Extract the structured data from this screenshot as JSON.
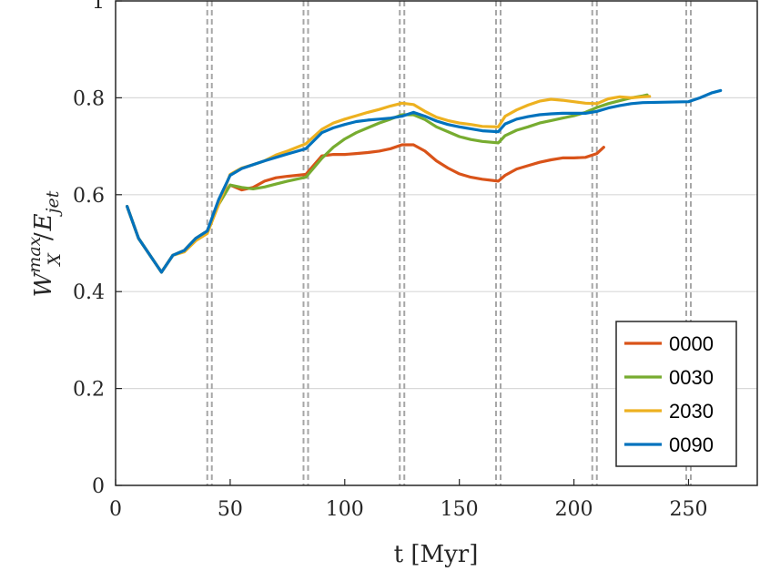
{
  "chart_data": {
    "type": "line",
    "title": "",
    "xlabel": "t [Myr]",
    "ylabel": "W_X^max / E_jet",
    "xlim": [
      0,
      280
    ],
    "ylim": [
      0,
      1
    ],
    "xticks": [
      "0",
      "50",
      "100",
      "150",
      "200",
      "250"
    ],
    "yticks": [
      "0",
      "0.2",
      "0.4",
      "0.6",
      "0.8",
      "1"
    ],
    "grid": "horizontal",
    "legend_position": "bottom-right",
    "vertical_markers": [
      41,
      83,
      125,
      167,
      209,
      250
    ],
    "colors": {
      "0000": "#D95319",
      "0030": "#77AC30",
      "2030": "#EDB120",
      "0090": "#0072BD",
      "marker": "#a6a6a6",
      "grid": "#d9d9d9"
    },
    "series": [
      {
        "name": "0000",
        "x": [
          5,
          10,
          20,
          25,
          30,
          35,
          40,
          45,
          50,
          55,
          60,
          65,
          70,
          75,
          83,
          90,
          95,
          100,
          105,
          110,
          115,
          120,
          125,
          130,
          135,
          140,
          145,
          150,
          155,
          160,
          167,
          170,
          175,
          180,
          185,
          190,
          195,
          200,
          205,
          210,
          213
        ],
        "y": [
          0.576,
          0.51,
          0.44,
          0.475,
          0.485,
          0.51,
          0.525,
          0.585,
          0.62,
          0.61,
          0.615,
          0.628,
          0.635,
          0.638,
          0.642,
          0.68,
          0.683,
          0.683,
          0.685,
          0.687,
          0.69,
          0.695,
          0.703,
          0.703,
          0.69,
          0.67,
          0.655,
          0.643,
          0.636,
          0.632,
          0.628,
          0.64,
          0.653,
          0.66,
          0.667,
          0.672,
          0.676,
          0.676,
          0.677,
          0.685,
          0.698
        ]
      },
      {
        "name": "0030",
        "x": [
          5,
          10,
          20,
          25,
          30,
          35,
          40,
          45,
          50,
          55,
          60,
          65,
          70,
          75,
          83,
          90,
          95,
          100,
          105,
          110,
          115,
          120,
          125,
          130,
          135,
          140,
          145,
          150,
          155,
          160,
          167,
          170,
          175,
          180,
          185,
          190,
          195,
          200,
          205,
          210,
          215,
          220,
          225,
          230,
          232
        ],
        "y": [
          0.576,
          0.51,
          0.44,
          0.475,
          0.485,
          0.51,
          0.525,
          0.58,
          0.62,
          0.615,
          0.612,
          0.616,
          0.622,
          0.628,
          0.636,
          0.675,
          0.698,
          0.715,
          0.728,
          0.738,
          0.748,
          0.756,
          0.765,
          0.765,
          0.755,
          0.74,
          0.73,
          0.72,
          0.714,
          0.71,
          0.707,
          0.722,
          0.733,
          0.74,
          0.748,
          0.753,
          0.758,
          0.763,
          0.77,
          0.78,
          0.788,
          0.794,
          0.8,
          0.804,
          0.806
        ]
      },
      {
        "name": "2030",
        "x": [
          5,
          10,
          20,
          25,
          30,
          35,
          40,
          45,
          50,
          55,
          60,
          65,
          70,
          75,
          83,
          90,
          95,
          100,
          105,
          110,
          115,
          120,
          125,
          130,
          135,
          140,
          145,
          150,
          155,
          160,
          167,
          170,
          175,
          180,
          185,
          190,
          195,
          200,
          205,
          210,
          215,
          220,
          225,
          230,
          233
        ],
        "y": [
          0.576,
          0.51,
          0.44,
          0.475,
          0.482,
          0.505,
          0.52,
          0.58,
          0.642,
          0.655,
          0.662,
          0.67,
          0.682,
          0.69,
          0.705,
          0.735,
          0.748,
          0.756,
          0.763,
          0.77,
          0.776,
          0.783,
          0.789,
          0.786,
          0.772,
          0.76,
          0.753,
          0.748,
          0.745,
          0.741,
          0.74,
          0.762,
          0.775,
          0.785,
          0.793,
          0.797,
          0.795,
          0.792,
          0.789,
          0.788,
          0.798,
          0.802,
          0.8,
          0.802,
          0.803
        ]
      },
      {
        "name": "0090",
        "x": [
          5,
          10,
          20,
          25,
          30,
          35,
          40,
          45,
          50,
          55,
          60,
          65,
          70,
          75,
          83,
          90,
          95,
          100,
          105,
          110,
          115,
          120,
          125,
          130,
          135,
          140,
          145,
          150,
          155,
          160,
          167,
          170,
          175,
          180,
          185,
          190,
          195,
          200,
          205,
          210,
          215,
          220,
          225,
          230,
          240,
          250,
          255,
          260,
          264
        ],
        "y": [
          0.576,
          0.51,
          0.44,
          0.475,
          0.485,
          0.51,
          0.525,
          0.59,
          0.64,
          0.654,
          0.662,
          0.67,
          0.677,
          0.684,
          0.695,
          0.728,
          0.738,
          0.745,
          0.751,
          0.754,
          0.756,
          0.758,
          0.762,
          0.77,
          0.762,
          0.752,
          0.745,
          0.74,
          0.736,
          0.732,
          0.73,
          0.746,
          0.756,
          0.761,
          0.765,
          0.767,
          0.768,
          0.768,
          0.768,
          0.772,
          0.779,
          0.784,
          0.788,
          0.79,
          0.791,
          0.792,
          0.8,
          0.81,
          0.815
        ]
      }
    ]
  }
}
